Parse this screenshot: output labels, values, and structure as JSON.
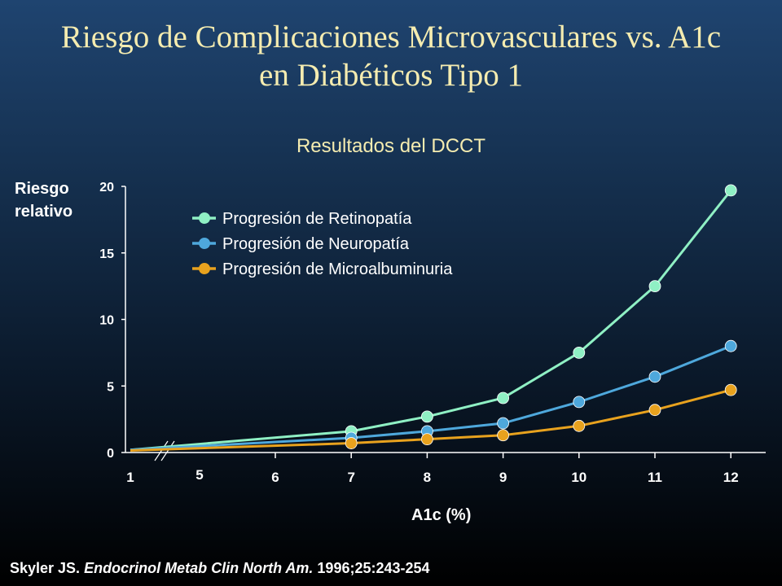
{
  "slide": {
    "title_line1": "Riesgo de Complicaciones Microvasculares vs. A1c",
    "title_line2": "en Diabéticos Tipo 1",
    "subtitle": "Resultados del DCCT",
    "citation": {
      "author": "Skyler JS. ",
      "journal": "Endocrinol Metab Clin North Am.",
      "details": " 1996;25:243-254"
    }
  },
  "chart_data": {
    "type": "line",
    "title": "Resultados del DCCT",
    "xlabel": "A1c (%)",
    "ylabel_line1": "Riesgo",
    "ylabel_line2": "relativo",
    "x_ticks": [
      "1",
      "5",
      "6",
      "7",
      "8",
      "9",
      "10",
      "11",
      "12"
    ],
    "y_ticks": [
      "0",
      "5",
      "10",
      "15",
      "20"
    ],
    "ylim": [
      0,
      20
    ],
    "axis_break": true,
    "legend_position": "top-left",
    "grid": false,
    "series": [
      {
        "name": "Progresión de Retinopatía",
        "color": "#8ff0c4",
        "points": [
          {
            "x": 1,
            "y": 0.2
          },
          {
            "x": 7,
            "y": 1.6
          },
          {
            "x": 8,
            "y": 2.7
          },
          {
            "x": 9,
            "y": 4.1
          },
          {
            "x": 10,
            "y": 7.5
          },
          {
            "x": 11,
            "y": 12.5
          },
          {
            "x": 12,
            "y": 19.7
          }
        ]
      },
      {
        "name": "Progresión de Neuropatía",
        "color": "#4ea8dc",
        "points": [
          {
            "x": 1,
            "y": 0.2
          },
          {
            "x": 7,
            "y": 1.1
          },
          {
            "x": 8,
            "y": 1.6
          },
          {
            "x": 9,
            "y": 2.2
          },
          {
            "x": 10,
            "y": 3.8
          },
          {
            "x": 11,
            "y": 5.7
          },
          {
            "x": 12,
            "y": 8.0
          }
        ]
      },
      {
        "name": "Progresión de Microalbuminuria",
        "color": "#e8a21e",
        "points": [
          {
            "x": 1,
            "y": 0.15
          },
          {
            "x": 7,
            "y": 0.7
          },
          {
            "x": 8,
            "y": 1.0
          },
          {
            "x": 9,
            "y": 1.3
          },
          {
            "x": 10,
            "y": 2.0
          },
          {
            "x": 11,
            "y": 3.2
          },
          {
            "x": 12,
            "y": 4.7
          }
        ]
      }
    ]
  }
}
